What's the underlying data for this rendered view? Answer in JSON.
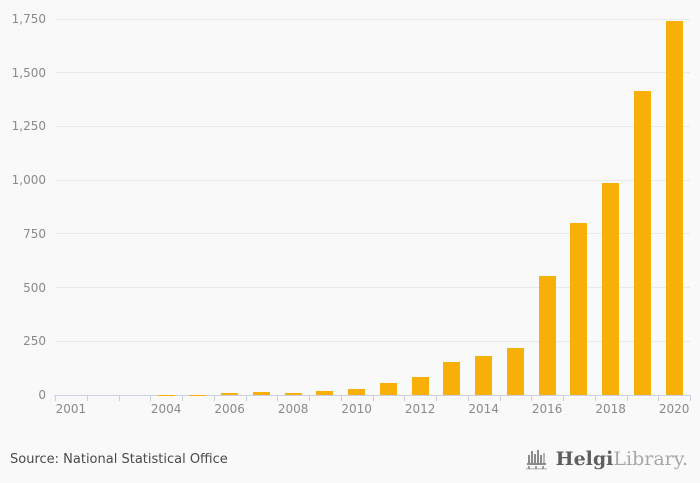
{
  "page": {
    "background": "#f9f9f9"
  },
  "chart_data": {
    "type": "bar",
    "title": "",
    "xlabel": "",
    "ylabel": "",
    "legend": "none",
    "grid": "horizontal",
    "categories": [
      2001,
      2002,
      2003,
      2004,
      2005,
      2006,
      2007,
      2008,
      2009,
      2010,
      2011,
      2012,
      2013,
      2014,
      2015,
      2016,
      2017,
      2018,
      2019,
      2020
    ],
    "values": [
      0,
      0,
      0,
      1,
      2,
      10,
      14,
      11,
      19,
      27,
      55,
      85,
      155,
      180,
      220,
      555,
      800,
      985,
      1415,
      1740
    ],
    "bar_color": "#F8B008",
    "ylim": [
      0,
      1750
    ],
    "y_tick_values": [
      0,
      250,
      500,
      750,
      1000,
      1250,
      1500,
      1750
    ],
    "y_tick_labels": [
      "0",
      "250",
      "500",
      "750",
      "1,000",
      "1,250",
      "1,500",
      "1,750"
    ],
    "x_axis_labels": [
      {
        "text": "2001",
        "year": 2001
      },
      {
        "text": "2004",
        "year": 2004
      },
      {
        "text": "2006",
        "year": 2006
      },
      {
        "text": "2008",
        "year": 2008
      },
      {
        "text": "2010",
        "year": 2010
      },
      {
        "text": "2012",
        "year": 2012
      },
      {
        "text": "2014",
        "year": 2014
      },
      {
        "text": "2016",
        "year": 2016
      },
      {
        "text": "2018",
        "year": 2018
      },
      {
        "text": "2020",
        "year": 2020
      }
    ]
  },
  "colors": {
    "gridline": "#E9E9E9",
    "axis": "#C9D0E2",
    "tick_label": "#8A8A8A",
    "source_text": "#4A4A4A",
    "logo_bold": "#5F5F5F",
    "logo_light": "#A7A7A7",
    "logo_icon": "#8A8A8A"
  },
  "footer": {
    "source": "Source: National Statistical Office",
    "logo": {
      "bold": "Helgi",
      "light": "Library."
    }
  }
}
